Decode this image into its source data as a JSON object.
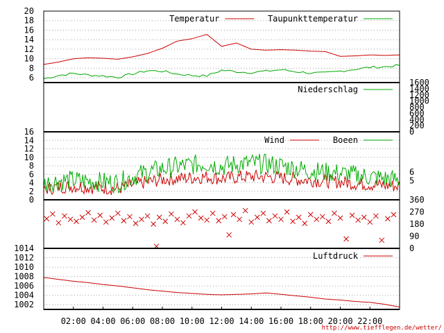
{
  "chart_data": [
    {
      "type": "line",
      "panel": "temperature",
      "x_unit": "hour",
      "ylim": [
        5,
        20
      ],
      "yticks": [
        6,
        8,
        10,
        12,
        14,
        16,
        18,
        20
      ],
      "grid": true,
      "legend_position": "top-right",
      "series": [
        {
          "name": "Temperatur",
          "color": "#cc0000",
          "x": [
            0,
            1,
            2,
            3,
            4,
            5,
            6,
            7,
            8,
            9,
            10,
            11,
            12,
            13,
            14,
            15,
            16,
            17,
            18,
            19,
            20,
            21,
            22,
            23,
            24
          ],
          "values": [
            8.8,
            9.3,
            10.0,
            10.2,
            10.1,
            9.9,
            10.4,
            11.1,
            12.2,
            13.7,
            14.2,
            15.1,
            12.6,
            13.3,
            12.0,
            11.8,
            11.9,
            11.8,
            11.6,
            11.5,
            10.5,
            10.6,
            10.8,
            10.7,
            10.8
          ]
        },
        {
          "name": "Taupunkttemperatur",
          "color": "#00aa00",
          "x": [
            0,
            1,
            2,
            3,
            4,
            5,
            6,
            7,
            8,
            9,
            10,
            11,
            12,
            13,
            14,
            15,
            16,
            17,
            18,
            19,
            20,
            21,
            22,
            23,
            24
          ],
          "values": [
            5.8,
            6.5,
            6.9,
            6.6,
            6.4,
            6.1,
            6.8,
            7.5,
            7.4,
            6.8,
            6.5,
            6.4,
            7.6,
            7.3,
            7.1,
            7.4,
            7.7,
            7.3,
            7.0,
            7.0,
            7.4,
            7.8,
            8.2,
            8.3,
            8.6
          ]
        }
      ]
    },
    {
      "type": "line",
      "panel": "precipitation",
      "x_unit": "hour",
      "ylim": [
        0,
        1600
      ],
      "yticks": [
        0,
        200,
        400,
        600,
        800,
        1000,
        1200,
        1400,
        1600
      ],
      "legend_position": "top-right",
      "series": [
        {
          "name": "Niederschlag",
          "color": "#00aa00",
          "x": [
            0,
            24
          ],
          "values": [
            0,
            0
          ]
        }
      ]
    },
    {
      "type": "line",
      "panel": "wind",
      "x_unit": "hour",
      "ylim": [
        0,
        16
      ],
      "yticks": [
        0,
        2,
        4,
        6,
        8,
        10,
        12,
        14,
        16
      ],
      "right_ticks": [
        "6",
        "5"
      ],
      "grid": true,
      "legend_position": "top-right",
      "series": [
        {
          "name": "Wind",
          "color": "#cc0000",
          "x": [
            0,
            1,
            2,
            3,
            4,
            5,
            6,
            7,
            8,
            9,
            10,
            11,
            12,
            13,
            14,
            15,
            16,
            17,
            18,
            19,
            20,
            21,
            22,
            23,
            24
          ],
          "values": [
            2.5,
            3.0,
            3.2,
            3.0,
            2.8,
            2.6,
            3.5,
            4.2,
            4.8,
            5.0,
            5.2,
            5.4,
            5.0,
            5.3,
            5.5,
            5.4,
            5.2,
            4.8,
            4.6,
            4.4,
            4.2,
            3.8,
            3.6,
            3.4,
            3.2
          ]
        },
        {
          "name": "Boeen",
          "color": "#00aa00",
          "x": [
            0,
            1,
            2,
            3,
            4,
            5,
            6,
            7,
            8,
            9,
            10,
            11,
            12,
            13,
            14,
            15,
            16,
            17,
            18,
            19,
            20,
            21,
            22,
            23,
            24
          ],
          "values": [
            3.8,
            4.5,
            4.6,
            4.4,
            4.2,
            4.0,
            5.5,
            6.5,
            7.3,
            7.8,
            8.2,
            8.6,
            7.8,
            8.4,
            8.6,
            8.4,
            8.0,
            7.4,
            6.8,
            6.5,
            6.2,
            5.8,
            5.4,
            5.0,
            4.6
          ]
        }
      ]
    },
    {
      "type": "scatter",
      "panel": "wind-direction",
      "x_unit": "hour",
      "ylim": [
        0,
        360
      ],
      "right_ticks": [
        "360",
        "270",
        "180",
        "90",
        "0"
      ],
      "marker": "x",
      "color": "#cc0000",
      "x": [
        0.2,
        0.6,
        1.0,
        1.4,
        1.8,
        2.2,
        2.6,
        3.0,
        3.4,
        3.8,
        4.2,
        4.6,
        5.0,
        5.4,
        5.8,
        6.2,
        6.6,
        7.0,
        7.4,
        7.6,
        7.8,
        8.2,
        8.6,
        9.0,
        9.4,
        9.8,
        10.2,
        10.6,
        11.0,
        11.4,
        11.8,
        12.2,
        12.5,
        12.8,
        13.2,
        13.6,
        14.0,
        14.4,
        14.8,
        15.2,
        15.6,
        16.0,
        16.4,
        16.8,
        17.2,
        17.6,
        18.0,
        18.4,
        18.8,
        19.2,
        19.6,
        20.0,
        20.4,
        20.8,
        21.2,
        21.6,
        22.0,
        22.4,
        22.8,
        23.2,
        23.6
      ],
      "values": [
        220,
        255,
        190,
        240,
        215,
        200,
        230,
        265,
        210,
        245,
        195,
        225,
        260,
        205,
        235,
        185,
        215,
        240,
        180,
        15,
        230,
        200,
        255,
        215,
        190,
        240,
        270,
        225,
        210,
        260,
        205,
        235,
        100,
        250,
        215,
        280,
        195,
        230,
        260,
        205,
        240,
        215,
        270,
        200,
        230,
        185,
        250,
        215,
        235,
        200,
        260,
        225,
        70,
        245,
        210,
        230,
        195,
        240,
        60,
        220,
        250
      ]
    },
    {
      "type": "line",
      "panel": "pressure",
      "x_unit": "hour",
      "ylim": [
        1001,
        1014
      ],
      "yticks": [
        1002,
        1004,
        1006,
        1008,
        1010,
        1012,
        1014
      ],
      "grid": true,
      "legend_position": "top-right",
      "series": [
        {
          "name": "Luftdruck",
          "color": "#cc0000",
          "x": [
            0,
            1,
            2,
            3,
            4,
            5,
            6,
            7,
            8,
            9,
            10,
            11,
            12,
            13,
            14,
            15,
            16,
            17,
            18,
            19,
            20,
            21,
            22,
            23,
            24
          ],
          "values": [
            1007.8,
            1007.4,
            1007.0,
            1006.7,
            1006.3,
            1006.0,
            1005.6,
            1005.2,
            1004.9,
            1004.6,
            1004.4,
            1004.2,
            1004.1,
            1004.2,
            1004.3,
            1004.5,
            1004.2,
            1003.9,
            1003.6,
            1003.2,
            1003.0,
            1002.7,
            1002.5,
            1002.1,
            1001.5
          ]
        }
      ]
    }
  ],
  "x_axis": {
    "tick_labels": [
      "02:00",
      "04:00",
      "06:00",
      "08:00",
      "10:00",
      "12:00",
      "14:00",
      "16:00",
      "18:00",
      "20:00",
      "22:00"
    ],
    "tick_hours": [
      2,
      4,
      6,
      8,
      10,
      12,
      14,
      16,
      18,
      20,
      22
    ],
    "range_hours": [
      0,
      24
    ]
  },
  "footer": {
    "url": "http://www.tiefflegen.de/wetter/"
  }
}
